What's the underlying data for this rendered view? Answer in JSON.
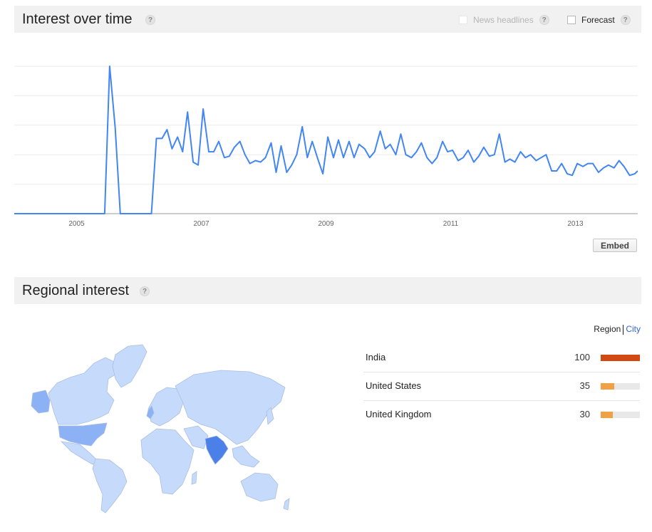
{
  "interest": {
    "title": "Interest over time",
    "help_icon": "question-icon",
    "news_headlines_label": "News headlines",
    "forecast_label": "Forecast",
    "embed_label": "Embed"
  },
  "chart_data": {
    "type": "line",
    "title": "Interest over time",
    "xlabel": "",
    "ylabel": "",
    "xlim": [
      2004.0,
      2014.0
    ],
    "ylim": [
      0,
      100
    ],
    "grid": true,
    "x_ticks": [
      "2005",
      "2007",
      "2009",
      "2011",
      "2013"
    ],
    "x_tick_values": [
      2005,
      2007,
      2009,
      2011,
      2013
    ],
    "series": [
      {
        "color": "#4285f4",
        "x": [
          2004.0,
          2005.45,
          2005.53,
          2005.62,
          2005.7,
          2006.2,
          2006.28,
          2006.37,
          2006.45,
          2006.53,
          2006.62,
          2006.7,
          2006.78,
          2006.87,
          2006.95,
          2007.03,
          2007.12,
          2007.2,
          2007.28,
          2007.37,
          2007.45,
          2007.53,
          2007.62,
          2007.7,
          2007.78,
          2007.87,
          2007.95,
          2008.03,
          2008.12,
          2008.2,
          2008.28,
          2008.37,
          2008.45,
          2008.53,
          2008.62,
          2008.7,
          2008.78,
          2008.87,
          2008.95,
          2009.03,
          2009.12,
          2009.2,
          2009.28,
          2009.37,
          2009.45,
          2009.53,
          2009.62,
          2009.7,
          2009.78,
          2009.87,
          2009.95,
          2010.03,
          2010.12,
          2010.2,
          2010.28,
          2010.37,
          2010.45,
          2010.53,
          2010.62,
          2010.7,
          2010.78,
          2010.87,
          2010.95,
          2011.03,
          2011.12,
          2011.2,
          2011.28,
          2011.37,
          2011.45,
          2011.53,
          2011.62,
          2011.7,
          2011.78,
          2011.87,
          2011.95,
          2012.03,
          2012.12,
          2012.2,
          2012.28,
          2012.37,
          2012.45,
          2012.53,
          2012.62,
          2012.7,
          2012.78,
          2012.87,
          2012.95,
          2013.03,
          2013.12,
          2013.2,
          2013.28,
          2013.37,
          2013.45,
          2013.53,
          2013.62,
          2013.7,
          2013.78,
          2013.87,
          2013.95,
          2014.0
        ],
        "values": [
          0,
          0,
          100,
          58,
          0,
          0,
          51,
          51,
          57,
          44,
          52,
          42,
          69,
          35,
          33,
          71,
          42,
          42,
          49,
          38,
          39,
          45,
          49,
          40,
          34,
          36,
          35,
          38,
          48,
          28,
          46,
          28,
          33,
          40,
          59,
          38,
          49,
          37,
          27,
          52,
          38,
          50,
          38,
          49,
          38,
          47,
          44,
          38,
          42,
          56,
          44,
          47,
          40,
          54,
          40,
          38,
          42,
          48,
          38,
          34,
          38,
          49,
          42,
          43,
          36,
          38,
          43,
          35,
          39,
          45,
          39,
          40,
          54,
          35,
          37,
          35,
          42,
          38,
          40,
          36,
          38,
          40,
          29,
          29,
          34,
          27,
          26,
          34,
          32,
          34,
          34,
          28,
          31,
          33,
          31,
          36,
          32,
          26,
          27,
          29
        ]
      }
    ]
  },
  "regional": {
    "title": "Regional interest",
    "help_icon": "question-icon",
    "toggle_region": "Region",
    "toggle_city": "City",
    "rows": [
      {
        "name": "India",
        "value": 100,
        "value_label": "100",
        "color": "#d14910"
      },
      {
        "name": "United States",
        "value": 35,
        "value_label": "35",
        "color": "#f0a045"
      },
      {
        "name": "United Kingdom",
        "value": 30,
        "value_label": "30",
        "color": "#f0a045"
      }
    ]
  },
  "map_colors": {
    "ocean": "#ffffff",
    "land": "#c6dbfb",
    "border": "#aabfe0",
    "medium": "#8cb2f5",
    "high": "#4a80e8"
  }
}
